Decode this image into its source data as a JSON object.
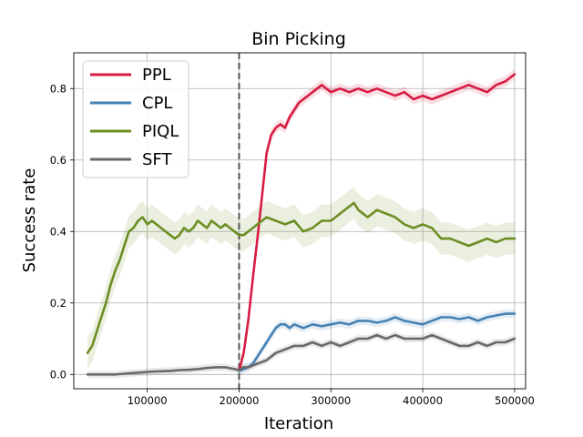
{
  "chart_data": {
    "type": "line",
    "title": "Bin Picking",
    "xlabel": "Iteration",
    "ylabel": "Success rate",
    "xlim": [
      20000,
      512000
    ],
    "ylim": [
      -0.04,
      0.9
    ],
    "xticks": [
      100000,
      200000,
      300000,
      400000,
      500000
    ],
    "xtick_labels": [
      "100000",
      "200000",
      "300000",
      "400000",
      "500000"
    ],
    "yticks": [
      0.0,
      0.2,
      0.4,
      0.6,
      0.8
    ],
    "ytick_labels": [
      "0.0",
      "0.2",
      "0.4",
      "0.6",
      "0.8"
    ],
    "grid": true,
    "legend_position": "top-left",
    "vline": {
      "x": 200000,
      "style": "dashed",
      "color": "#555555"
    },
    "series": [
      {
        "name": "PPL",
        "color": "#d81b42",
        "band": 0.015,
        "points": [
          [
            200000,
            0.01
          ],
          [
            205000,
            0.06
          ],
          [
            210000,
            0.15
          ],
          [
            215000,
            0.27
          ],
          [
            220000,
            0.38
          ],
          [
            225000,
            0.5
          ],
          [
            230000,
            0.62
          ],
          [
            235000,
            0.67
          ],
          [
            240000,
            0.69
          ],
          [
            245000,
            0.7
          ],
          [
            250000,
            0.69
          ],
          [
            255000,
            0.72
          ],
          [
            260000,
            0.74
          ],
          [
            265000,
            0.76
          ],
          [
            270000,
            0.77
          ],
          [
            275000,
            0.78
          ],
          [
            280000,
            0.79
          ],
          [
            285000,
            0.8
          ],
          [
            290000,
            0.81
          ],
          [
            295000,
            0.8
          ],
          [
            300000,
            0.79
          ],
          [
            310000,
            0.8
          ],
          [
            320000,
            0.79
          ],
          [
            330000,
            0.8
          ],
          [
            340000,
            0.79
          ],
          [
            350000,
            0.8
          ],
          [
            360000,
            0.79
          ],
          [
            370000,
            0.78
          ],
          [
            380000,
            0.79
          ],
          [
            390000,
            0.77
          ],
          [
            400000,
            0.78
          ],
          [
            410000,
            0.77
          ],
          [
            420000,
            0.78
          ],
          [
            430000,
            0.79
          ],
          [
            440000,
            0.8
          ],
          [
            450000,
            0.81
          ],
          [
            460000,
            0.8
          ],
          [
            470000,
            0.79
          ],
          [
            480000,
            0.81
          ],
          [
            490000,
            0.82
          ],
          [
            500000,
            0.84
          ]
        ]
      },
      {
        "name": "CPL",
        "color": "#4682b4",
        "band": 0.012,
        "points": [
          [
            200000,
            0.01
          ],
          [
            205000,
            0.015
          ],
          [
            210000,
            0.02
          ],
          [
            215000,
            0.03
          ],
          [
            220000,
            0.05
          ],
          [
            225000,
            0.07
          ],
          [
            230000,
            0.09
          ],
          [
            235000,
            0.11
          ],
          [
            240000,
            0.13
          ],
          [
            245000,
            0.14
          ],
          [
            250000,
            0.14
          ],
          [
            255000,
            0.13
          ],
          [
            260000,
            0.14
          ],
          [
            265000,
            0.135
          ],
          [
            270000,
            0.13
          ],
          [
            280000,
            0.14
          ],
          [
            290000,
            0.135
          ],
          [
            300000,
            0.14
          ],
          [
            310000,
            0.145
          ],
          [
            320000,
            0.14
          ],
          [
            330000,
            0.15
          ],
          [
            340000,
            0.15
          ],
          [
            350000,
            0.145
          ],
          [
            360000,
            0.15
          ],
          [
            370000,
            0.16
          ],
          [
            380000,
            0.15
          ],
          [
            390000,
            0.145
          ],
          [
            400000,
            0.14
          ],
          [
            410000,
            0.15
          ],
          [
            420000,
            0.16
          ],
          [
            430000,
            0.16
          ],
          [
            440000,
            0.155
          ],
          [
            450000,
            0.16
          ],
          [
            460000,
            0.15
          ],
          [
            470000,
            0.16
          ],
          [
            480000,
            0.165
          ],
          [
            490000,
            0.17
          ],
          [
            500000,
            0.17
          ]
        ]
      },
      {
        "name": "PIQL",
        "color": "#6b8e23",
        "band": 0.045,
        "points": [
          [
            35000,
            0.06
          ],
          [
            40000,
            0.08
          ],
          [
            45000,
            0.12
          ],
          [
            50000,
            0.16
          ],
          [
            55000,
            0.2
          ],
          [
            60000,
            0.25
          ],
          [
            65000,
            0.29
          ],
          [
            70000,
            0.32
          ],
          [
            75000,
            0.36
          ],
          [
            80000,
            0.4
          ],
          [
            85000,
            0.41
          ],
          [
            90000,
            0.43
          ],
          [
            95000,
            0.44
          ],
          [
            100000,
            0.42
          ],
          [
            105000,
            0.43
          ],
          [
            110000,
            0.42
          ],
          [
            115000,
            0.41
          ],
          [
            120000,
            0.4
          ],
          [
            125000,
            0.39
          ],
          [
            130000,
            0.38
          ],
          [
            135000,
            0.39
          ],
          [
            140000,
            0.41
          ],
          [
            145000,
            0.4
          ],
          [
            150000,
            0.41
          ],
          [
            155000,
            0.43
          ],
          [
            160000,
            0.42
          ],
          [
            165000,
            0.41
          ],
          [
            170000,
            0.43
          ],
          [
            175000,
            0.42
          ],
          [
            180000,
            0.41
          ],
          [
            185000,
            0.42
          ],
          [
            190000,
            0.41
          ],
          [
            195000,
            0.4
          ],
          [
            200000,
            0.39
          ],
          [
            205000,
            0.39
          ],
          [
            210000,
            0.4
          ],
          [
            215000,
            0.41
          ],
          [
            220000,
            0.42
          ],
          [
            230000,
            0.44
          ],
          [
            240000,
            0.43
          ],
          [
            250000,
            0.42
          ],
          [
            260000,
            0.43
          ],
          [
            270000,
            0.4
          ],
          [
            280000,
            0.41
          ],
          [
            290000,
            0.43
          ],
          [
            300000,
            0.43
          ],
          [
            310000,
            0.45
          ],
          [
            320000,
            0.47
          ],
          [
            325000,
            0.48
          ],
          [
            330000,
            0.46
          ],
          [
            340000,
            0.44
          ],
          [
            350000,
            0.46
          ],
          [
            360000,
            0.45
          ],
          [
            370000,
            0.44
          ],
          [
            380000,
            0.42
          ],
          [
            390000,
            0.41
          ],
          [
            400000,
            0.42
          ],
          [
            410000,
            0.41
          ],
          [
            420000,
            0.38
          ],
          [
            430000,
            0.38
          ],
          [
            440000,
            0.37
          ],
          [
            450000,
            0.36
          ],
          [
            460000,
            0.37
          ],
          [
            470000,
            0.38
          ],
          [
            480000,
            0.37
          ],
          [
            490000,
            0.38
          ],
          [
            500000,
            0.38
          ]
        ]
      },
      {
        "name": "SFT",
        "color": "#696969",
        "band": 0.01,
        "points": [
          [
            35000,
            0.0
          ],
          [
            45000,
            0.0
          ],
          [
            55000,
            0.0
          ],
          [
            65000,
            0.0
          ],
          [
            75000,
            0.002
          ],
          [
            85000,
            0.004
          ],
          [
            95000,
            0.006
          ],
          [
            105000,
            0.008
          ],
          [
            115000,
            0.009
          ],
          [
            125000,
            0.01
          ],
          [
            135000,
            0.012
          ],
          [
            145000,
            0.013
          ],
          [
            155000,
            0.015
          ],
          [
            165000,
            0.018
          ],
          [
            175000,
            0.02
          ],
          [
            185000,
            0.02
          ],
          [
            195000,
            0.015
          ],
          [
            200000,
            0.012
          ],
          [
            205000,
            0.02
          ],
          [
            210000,
            0.02
          ],
          [
            220000,
            0.03
          ],
          [
            230000,
            0.04
          ],
          [
            240000,
            0.06
          ],
          [
            250000,
            0.07
          ],
          [
            260000,
            0.08
          ],
          [
            270000,
            0.08
          ],
          [
            280000,
            0.09
          ],
          [
            290000,
            0.08
          ],
          [
            300000,
            0.09
          ],
          [
            310000,
            0.08
          ],
          [
            320000,
            0.09
          ],
          [
            330000,
            0.1
          ],
          [
            340000,
            0.1
          ],
          [
            350000,
            0.11
          ],
          [
            360000,
            0.1
          ],
          [
            370000,
            0.11
          ],
          [
            380000,
            0.1
          ],
          [
            390000,
            0.1
          ],
          [
            400000,
            0.1
          ],
          [
            410000,
            0.11
          ],
          [
            420000,
            0.1
          ],
          [
            430000,
            0.09
          ],
          [
            440000,
            0.08
          ],
          [
            450000,
            0.08
          ],
          [
            460000,
            0.09
          ],
          [
            470000,
            0.08
          ],
          [
            480000,
            0.09
          ],
          [
            490000,
            0.09
          ],
          [
            500000,
            0.1
          ]
        ]
      }
    ]
  }
}
